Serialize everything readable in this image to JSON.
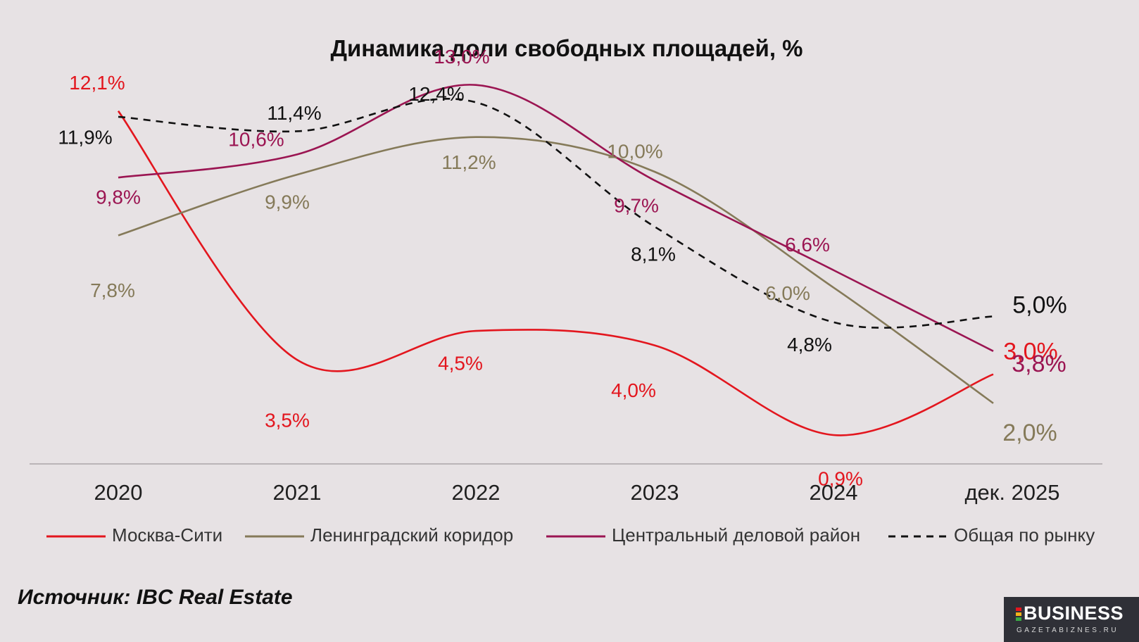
{
  "chart_data": {
    "type": "line",
    "title": "Динамика доли свободных площадей, %",
    "categories": [
      "2020",
      "2021",
      "2022",
      "2023",
      "2024",
      "дек. 2025"
    ],
    "series": [
      {
        "name": "Москва-Сити",
        "values": [
          12.1,
          3.5,
          4.5,
          4.0,
          0.9,
          3.0
        ],
        "labels": [
          "12,1%",
          "3,5%",
          "4,5%",
          "4,0%",
          "0,9%",
          "3,0%"
        ],
        "color": "#e3161e",
        "dashed": false
      },
      {
        "name": "Ленинградский коридор",
        "values": [
          7.8,
          9.9,
          11.2,
          10.0,
          6.0,
          2.0
        ],
        "labels": [
          "7,8%",
          "9,9%",
          "11,2%",
          "10,0%",
          "6,0%",
          "2,0%"
        ],
        "color": "#857a59",
        "dashed": false
      },
      {
        "name": "Центральный деловой район",
        "values": [
          9.8,
          10.6,
          13.0,
          9.7,
          6.6,
          3.8
        ],
        "labels": [
          "9,8%",
          "10,6%",
          "13,0%",
          "9,7%",
          "6,6%",
          "3,8%"
        ],
        "color": "#9b1552",
        "dashed": false
      },
      {
        "name": "Общая по рынку",
        "values": [
          11.9,
          11.4,
          12.4,
          8.1,
          4.8,
          5.0
        ],
        "labels": [
          "11,9%",
          "11,4%",
          "12,4%",
          "8,1%",
          "4,8%",
          "5,0%"
        ],
        "color": "#111111",
        "dashed": true
      }
    ],
    "ylim": [
      0,
      15
    ],
    "grid": false,
    "legend_position": "bottom"
  },
  "source": "Источник: IBC Real Estate",
  "logo": {
    "main": "BUSINESS",
    "sub": "GAZETABIZNES.RU",
    "colors": [
      "#e3161e",
      "#f2b21b",
      "#39a845"
    ]
  }
}
